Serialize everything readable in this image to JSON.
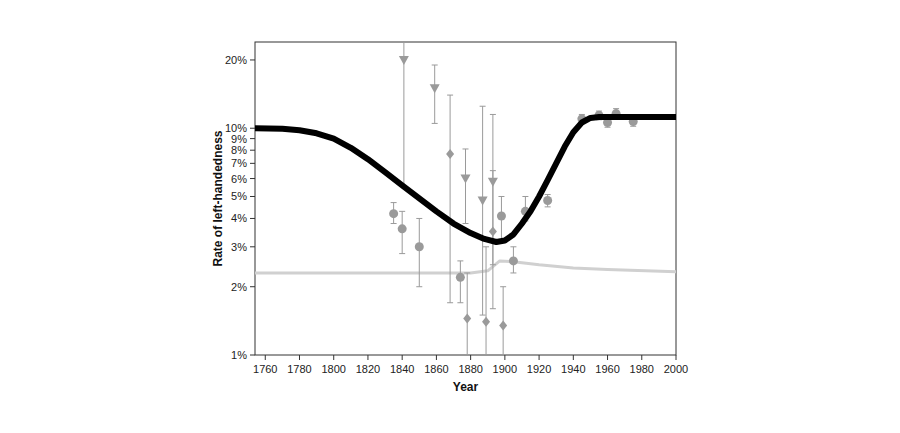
{
  "chart_data": {
    "type": "line",
    "x_label": "Year",
    "y_label": "Rate of left-handedness",
    "log": "y",
    "grid": false,
    "xlim": [
      1754,
      2000
    ],
    "ylim": [
      1,
      24
    ],
    "xticks": [
      1760,
      1780,
      1800,
      1820,
      1840,
      1860,
      1880,
      1900,
      1920,
      1940,
      1960,
      1980,
      2000
    ],
    "yticks": [
      {
        "value": 1,
        "label": "1%"
      },
      {
        "value": 2,
        "label": "2%"
      },
      {
        "value": 3,
        "label": "3%"
      },
      {
        "value": 4,
        "label": "4%"
      },
      {
        "value": 5,
        "label": "5%"
      },
      {
        "value": 6,
        "label": "6%"
      },
      {
        "value": 7,
        "label": "7%"
      },
      {
        "value": 8,
        "label": "8%"
      },
      {
        "value": 9,
        "label": "9%"
      },
      {
        "value": 10,
        "label": "10%"
      },
      {
        "value": 20,
        "label": "20%"
      }
    ],
    "series": [
      {
        "type": "line",
        "color": "#d0d0d0",
        "line_style": "solid",
        "x": [
          1754,
          1880,
          1890,
          1897,
          1905,
          1920,
          1940,
          1960,
          2000
        ],
        "values": [
          2.3,
          2.3,
          2.35,
          2.6,
          2.58,
          2.5,
          2.42,
          2.38,
          2.33
        ]
      },
      {
        "type": "scatter",
        "marker": "circle",
        "color": "#9a9a9a",
        "x": [
          1835,
          1840,
          1850,
          1874,
          1898,
          1905,
          1912,
          1925,
          1945,
          1955,
          1960,
          1965,
          1975
        ],
        "values": [
          4.2,
          3.6,
          3.0,
          2.2,
          4.1,
          2.6,
          4.3,
          4.8,
          11.0,
          11.4,
          10.6,
          11.6,
          10.7
        ],
        "lower": [
          3.8,
          2.8,
          2.0,
          1.7,
          3.2,
          2.3,
          3.9,
          4.5,
          10.5,
          10.9,
          10.1,
          11.0,
          10.2
        ],
        "upper": [
          4.7,
          4.3,
          4.0,
          2.6,
          5.0,
          3.0,
          5.0,
          5.1,
          11.5,
          11.9,
          11.1,
          12.2,
          11.2
        ]
      },
      {
        "type": "scatter",
        "marker": "triangle",
        "color": "#9a9a9a",
        "x": [
          1841,
          1859,
          1877,
          1887,
          1893
        ],
        "values": [
          20,
          15,
          6.0,
          4.8,
          5.8
        ],
        "lower": [
          5.5,
          10.5,
          3.8,
          1.5,
          2.5
        ],
        "upper": [
          30,
          19,
          8.1,
          12.5,
          11.5
        ]
      },
      {
        "type": "scatter",
        "marker": "diamond",
        "color": "#9a9a9a",
        "x": [
          1868,
          1878,
          1889,
          1893,
          1899
        ],
        "values": [
          7.7,
          1.45,
          1.4,
          3.5,
          1.35
        ],
        "lower": [
          1.7,
          1.0,
          1.0,
          1.6,
          1.0
        ],
        "upper": [
          14,
          2.3,
          3.0,
          6.5,
          2.0
        ]
      },
      {
        "type": "line",
        "color": "#000000",
        "line_style": "solid",
        "x": [
          1754,
          1770,
          1780,
          1790,
          1800,
          1810,
          1820,
          1830,
          1840,
          1850,
          1860,
          1870,
          1880,
          1888,
          1895,
          1900,
          1905,
          1910,
          1915,
          1920,
          1925,
          1930,
          1935,
          1940,
          1945,
          1950,
          1955,
          1970,
          2000
        ],
        "values": [
          10.0,
          9.95,
          9.8,
          9.5,
          9.0,
          8.2,
          7.3,
          6.4,
          5.6,
          4.9,
          4.3,
          3.8,
          3.45,
          3.25,
          3.15,
          3.2,
          3.4,
          3.8,
          4.3,
          5.0,
          5.9,
          7.0,
          8.3,
          9.6,
          10.6,
          11.1,
          11.2,
          11.2,
          11.2
        ]
      }
    ]
  }
}
